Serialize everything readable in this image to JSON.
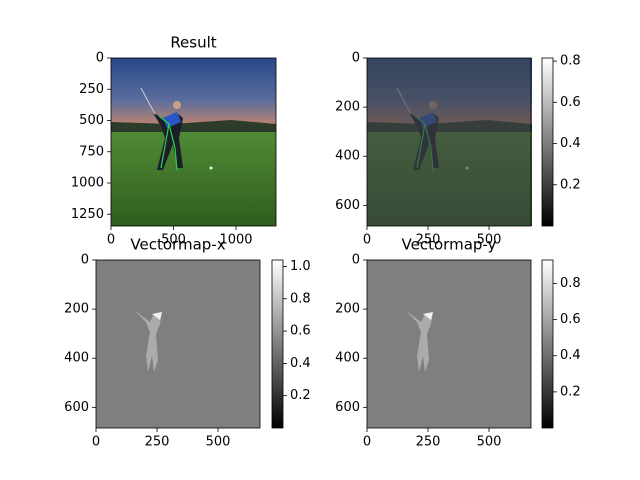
{
  "chart_data": [
    {
      "type": "image",
      "title": "Result",
      "xlim": [
        0,
        1320
      ],
      "ylim": [
        1344,
        0
      ],
      "xticks": [
        0,
        500,
        1000
      ],
      "yticks": [
        0,
        250,
        500,
        750,
        1000,
        1250
      ]
    },
    {
      "type": "image",
      "xlim": [
        0,
        672
      ],
      "ylim": [
        684,
        0
      ],
      "xticks": [
        0,
        250,
        500
      ],
      "yticks": [
        0,
        200,
        400,
        600
      ],
      "colorbar": {
        "lim": [
          0,
          0.815
        ],
        "ticks": [
          0.2,
          0.4,
          0.6,
          0.8
        ]
      }
    },
    {
      "type": "image",
      "title": "Vectormap-x",
      "xlim": [
        0,
        672
      ],
      "ylim": [
        684,
        0
      ],
      "xticks": [
        0,
        250,
        500
      ],
      "yticks": [
        0,
        200,
        400,
        600
      ],
      "colorbar": {
        "lim": [
          0,
          1.04
        ],
        "ticks": [
          0.2,
          0.4,
          0.6,
          0.8,
          {
            "value": 1,
            "label": "1.0"
          }
        ]
      }
    },
    {
      "type": "image",
      "title": "Vectormap-y",
      "xlim": [
        0,
        672
      ],
      "ylim": [
        684,
        0
      ],
      "xticks": [
        0,
        250,
        500
      ],
      "yticks": [
        0,
        200,
        400,
        600
      ],
      "colorbar": {
        "lim": [
          0,
          0.93
        ],
        "ticks": [
          0.2,
          0.4,
          0.6,
          0.8
        ]
      }
    }
  ]
}
